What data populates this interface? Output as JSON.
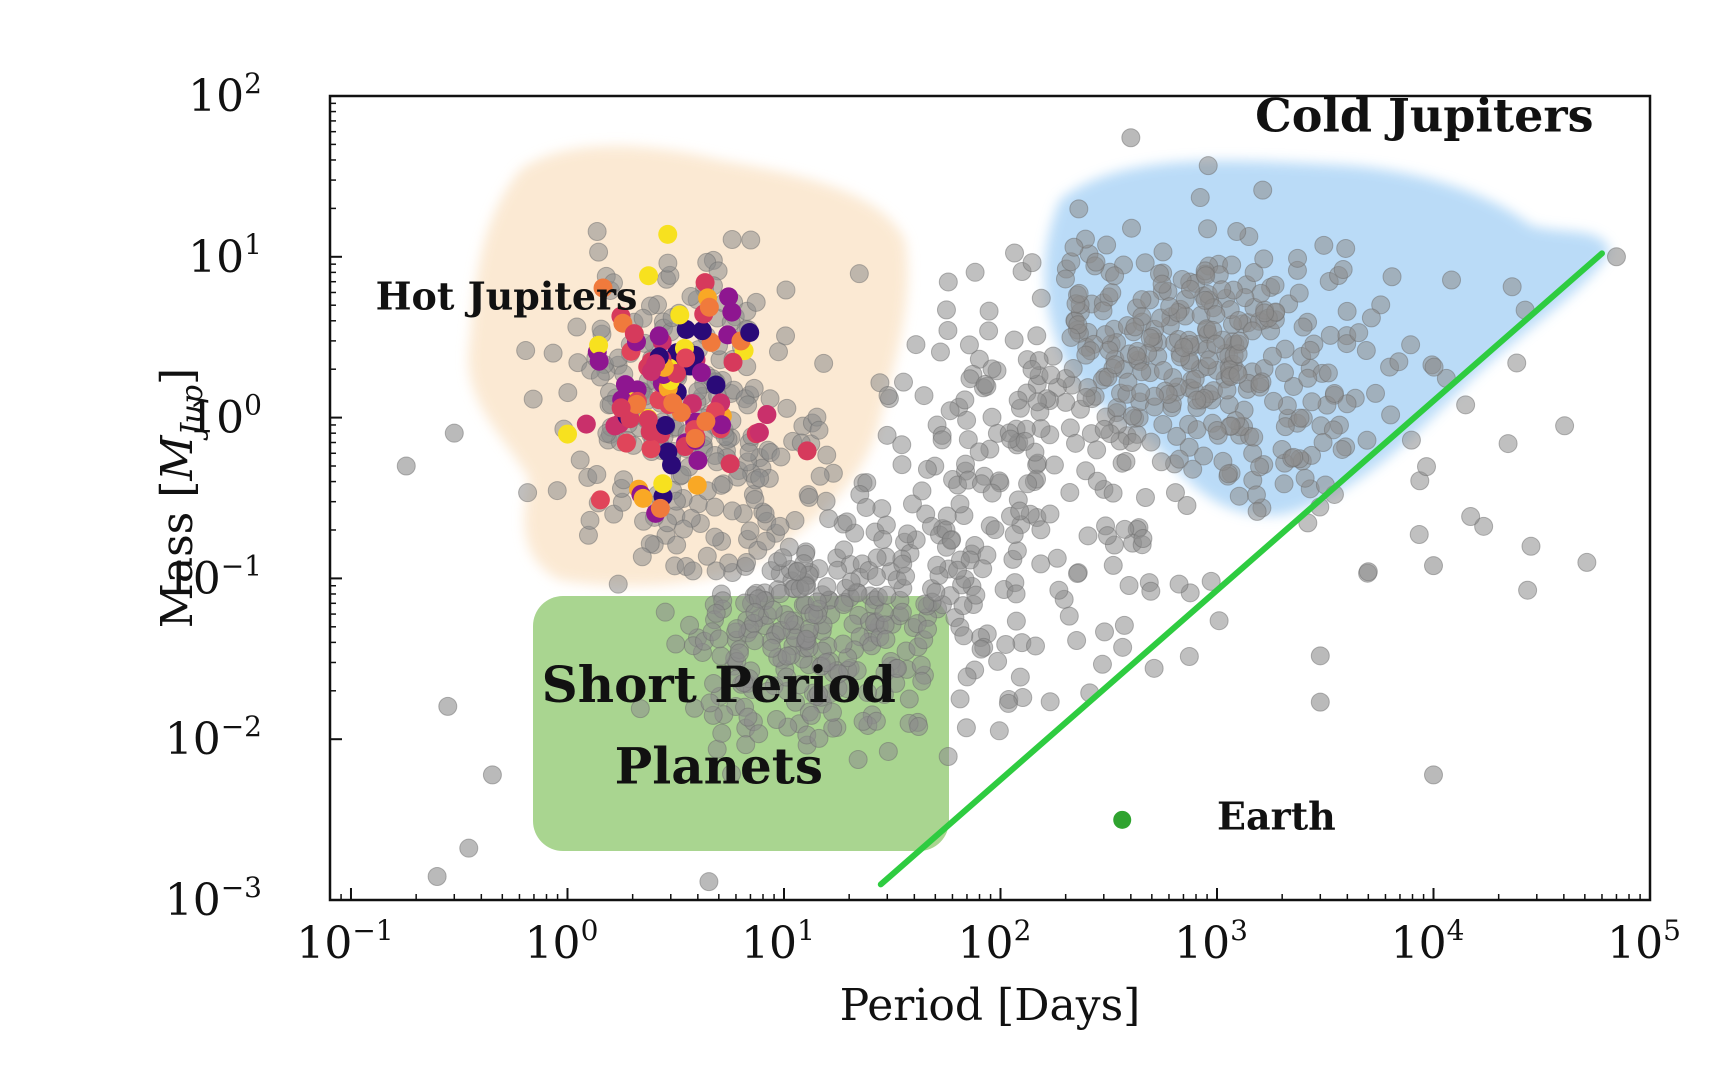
{
  "chart_data": {
    "type": "scatter",
    "x_scale": "log",
    "y_scale": "log",
    "xlabel": "Period [Days]",
    "ylabel": "Mass [M_Jup]",
    "ylabel_math": {
      "prefix": "Mass [",
      "symbol": "M",
      "subscript": "Jup",
      "suffix": "]"
    },
    "xlim": [
      0.08,
      100000
    ],
    "ylim": [
      0.001,
      100
    ],
    "x_ticks": [
      {
        "value": 0.1,
        "base": "10",
        "exp": "−1"
      },
      {
        "value": 1,
        "base": "10",
        "exp": "0"
      },
      {
        "value": 10,
        "base": "10",
        "exp": "1"
      },
      {
        "value": 100,
        "base": "10",
        "exp": "2"
      },
      {
        "value": 1000,
        "base": "10",
        "exp": "3"
      },
      {
        "value": 10000,
        "base": "10",
        "exp": "4"
      },
      {
        "value": 100000,
        "base": "10",
        "exp": "5"
      }
    ],
    "y_ticks": [
      {
        "value": 0.001,
        "base": "10",
        "exp": "−3"
      },
      {
        "value": 0.01,
        "base": "10",
        "exp": "−2"
      },
      {
        "value": 0.1,
        "base": "10",
        "exp": "−1"
      },
      {
        "value": 1,
        "base": "10",
        "exp": "0"
      },
      {
        "value": 10,
        "base": "10",
        "exp": "1"
      },
      {
        "value": 100,
        "base": "10",
        "exp": "2"
      }
    ],
    "regions": [
      {
        "name": "Hot Jupiters",
        "color": "#fbe7cf"
      },
      {
        "name": "Cold Jupiters",
        "color": "#b3d8f7"
      },
      {
        "name": "Short Period Planets",
        "color": "#8cc76b"
      }
    ],
    "annotations": [
      {
        "text": "Hot Jupiters",
        "x": 0.13,
        "y": 4.7
      },
      {
        "text": "Cold Jupiters",
        "x": 1500,
        "y": 60
      },
      {
        "text": "Short Period",
        "x": 5,
        "y": 0.017
      },
      {
        "text": "Planets",
        "x": 5,
        "y": 0.0053
      },
      {
        "text": "Earth",
        "x": 1000,
        "y": 0.00275
      }
    ],
    "earth": {
      "name": "Earth",
      "x": 365,
      "y": 0.00315,
      "color": "#2fa32f"
    },
    "boundary_line": {
      "x": [
        28,
        60000
      ],
      "y": [
        0.00125,
        10.5
      ],
      "color": "#2ecc40"
    },
    "colors": {
      "background_points": "#8c8c8c",
      "hot_jupiter_palette": [
        "#d63a5c",
        "#c9306b",
        "#f07a3c",
        "#f9a825",
        "#f7e11f",
        "#8e1690",
        "#2a0a78",
        "#e0455a"
      ]
    },
    "grid": false,
    "legend": "none"
  }
}
